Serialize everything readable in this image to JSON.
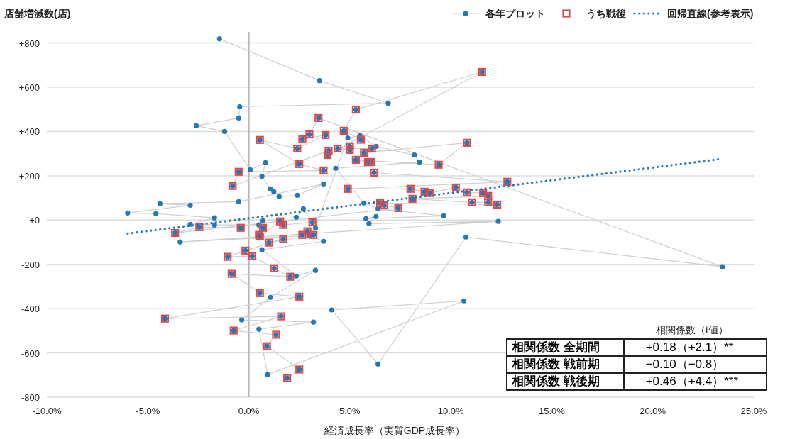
{
  "chart_data": {
    "type": "scatter",
    "ylabel": "店舗増減数(店)",
    "xlabel": "経済成長率（実質GDP成長率）",
    "xlim": [
      -10,
      25
    ],
    "xticks": [
      {
        "value": -10,
        "label": "-10.0%"
      },
      {
        "value": -5,
        "label": "-5.0%"
      },
      {
        "value": 0,
        "label": "0.0%"
      },
      {
        "value": 5,
        "label": "5.0%"
      },
      {
        "value": 10,
        "label": "10.0%"
      },
      {
        "value": 15,
        "label": "15.0%"
      },
      {
        "value": 20,
        "label": "20.0%"
      },
      {
        "value": 25,
        "label": "25.0%"
      }
    ],
    "ylim": [
      -800,
      850
    ],
    "yticks": [
      {
        "value": -800,
        "label": "-800"
      },
      {
        "value": -600,
        "label": "-600"
      },
      {
        "value": -400,
        "label": "-400"
      },
      {
        "value": -200,
        "label": "-200"
      },
      {
        "value": 0,
        "label": "+0"
      },
      {
        "value": 200,
        "label": "+200"
      },
      {
        "value": 400,
        "label": "+400"
      },
      {
        "value": 600,
        "label": "+600"
      },
      {
        "value": 800,
        "label": "+800"
      }
    ],
    "grid": "y",
    "legend": "top right",
    "ref_lines": [
      {
        "axis": "x",
        "value": 0,
        "color": "#b4b4b4"
      }
    ],
    "series": [
      {
        "name": "各年プロット",
        "type": "line",
        "marker": "circle",
        "color": "#2479b5",
        "x": [
          -1.45,
          3.5,
          6.9,
          -0.45,
          -0.5,
          -2.6,
          -1.2,
          0.07,
          0.83,
          0.65,
          1.07,
          1.24,
          1.5,
          2.4,
          3.7,
          -0.5,
          -4.4,
          -2.9,
          -6.0,
          -4.6,
          -1.7,
          -2.9,
          -1.7,
          0.5,
          0.7,
          2.35,
          2.7,
          3.3,
          4.9,
          5.5,
          6.3,
          8.2,
          8.45,
          4.3,
          5.7,
          6.4,
          9.65,
          5.8,
          6.3,
          5.95,
          12.35,
          -3.4,
          3.0,
          3.7,
          0.65,
          2.35,
          3.3,
          1.07,
          -0.35,
          3.2,
          0.5,
          0.93,
          10.65,
          4.1,
          6.4,
          10.75,
          23.45,
          3.45,
          3.0,
          2.65,
          3.8,
          2.4,
          0.55,
          2.5,
          3.7,
          -0.5,
          -0.8,
          3.95,
          3.9,
          11.55,
          5.3,
          4.7,
          5.55,
          5.0,
          5.0,
          4.4,
          6.1,
          5.7,
          10.8,
          9.4,
          5.3,
          5.9,
          6.05,
          6.2,
          12.8,
          4.9,
          8.0,
          8.7,
          8.95,
          10.25,
          10.8,
          11.6,
          11.85,
          8.1,
          11.05,
          11.85,
          12.3,
          6.5,
          6.7,
          7.4,
          -3.65,
          -2.45,
          -0.4,
          0.7,
          0.5,
          0.55,
          1.55,
          1.7,
          3.15,
          2.9,
          2.65,
          3.2,
          1.0,
          1.7,
          -0.17,
          -1.05,
          0.17,
          1.25,
          2.05,
          -0.85,
          0.55,
          2.5,
          -4.15,
          1.6,
          -0.75,
          1.35,
          0.9,
          2.5,
          1.9
        ],
        "values": [
          819,
          630,
          528,
          512,
          461,
          426,
          400,
          227,
          259,
          198,
          141,
          128,
          106,
          112,
          163,
          83,
          74,
          67,
          32,
          29,
          10,
          -19,
          -22,
          -22,
          -3,
          13,
          51,
          -35,
          371,
          381,
          333,
          294,
          262,
          234,
          77,
          51,
          19,
          6,
          16,
          -16,
          -6,
          -99,
          -70,
          -96,
          -134,
          -253,
          -227,
          -349,
          -451,
          -461,
          -493,
          -698,
          -365,
          -406,
          -650,
          -77,
          -211,
          461,
          387,
          365,
          384,
          323,
          362,
          253,
          224,
          218,
          154,
          313,
          294,
          669,
          499,
          403,
          363,
          333,
          317,
          323,
          323,
          304,
          349,
          250,
          272,
          262,
          262,
          214,
          173,
          141,
          141,
          128,
          122,
          147,
          125,
          122,
          109,
          96,
          80,
          80,
          70,
          77,
          67,
          54,
          -58,
          -32,
          -35,
          -35,
          -67,
          -74,
          -6,
          -22,
          -10,
          -51,
          -67,
          -67,
          -102,
          -86,
          -138,
          -166,
          -163,
          -218,
          -256,
          -243,
          -330,
          -346,
          -445,
          -435,
          -499,
          -518,
          -570,
          -675,
          -714
        ]
      },
      {
        "name": "うち戦後",
        "marker": "square",
        "color": "#e0474c",
        "x": [
          3.45,
          3.0,
          2.65,
          3.8,
          2.4,
          0.55,
          2.5,
          3.7,
          -0.5,
          -0.8,
          3.95,
          3.9,
          11.55,
          5.3,
          4.7,
          5.55,
          5.0,
          5.0,
          4.4,
          6.1,
          5.7,
          10.8,
          9.4,
          5.3,
          5.9,
          6.05,
          6.2,
          12.8,
          4.9,
          8.0,
          8.7,
          8.95,
          10.25,
          10.8,
          11.6,
          11.85,
          8.1,
          11.05,
          11.85,
          12.3,
          6.5,
          6.7,
          7.4,
          -3.65,
          -2.45,
          -0.4,
          0.7,
          0.5,
          0.55,
          1.55,
          1.7,
          3.15,
          2.9,
          2.65,
          3.2,
          1.0,
          1.7,
          -0.17,
          -1.05,
          0.17,
          1.25,
          2.05,
          -0.85,
          0.55,
          2.5,
          -4.15,
          1.6,
          -0.75,
          1.35,
          0.9,
          2.5,
          1.9
        ],
        "values": [
          461,
          387,
          365,
          384,
          323,
          362,
          253,
          224,
          218,
          154,
          313,
          294,
          669,
          499,
          403,
          363,
          333,
          317,
          323,
          323,
          304,
          349,
          250,
          272,
          262,
          262,
          214,
          173,
          141,
          141,
          128,
          122,
          147,
          125,
          122,
          109,
          96,
          80,
          80,
          70,
          77,
          67,
          54,
          -58,
          -32,
          -35,
          -35,
          -67,
          -74,
          -6,
          -22,
          -10,
          -51,
          -67,
          -67,
          -102,
          -86,
          -138,
          -166,
          -163,
          -218,
          -256,
          -243,
          -330,
          -346,
          -445,
          -435,
          -499,
          -518,
          -570,
          -675,
          -714
        ]
      },
      {
        "name": "回帰直線(参考表示)",
        "type": "line",
        "marker": "none",
        "line_style": "dotted",
        "color": "#2479b5",
        "x": [
          -6.0,
          23.3
        ],
        "values": [
          -61,
          275
        ]
      }
    ],
    "annotations": [
      "相関係数（t値）",
      "相関係数 全期間",
      "+0.18（+2.1）**",
      "相関係数 戦前期",
      "−0.10（−0.8）",
      "相関係数 戦後期",
      "+0.46（+4.4）***"
    ]
  }
}
